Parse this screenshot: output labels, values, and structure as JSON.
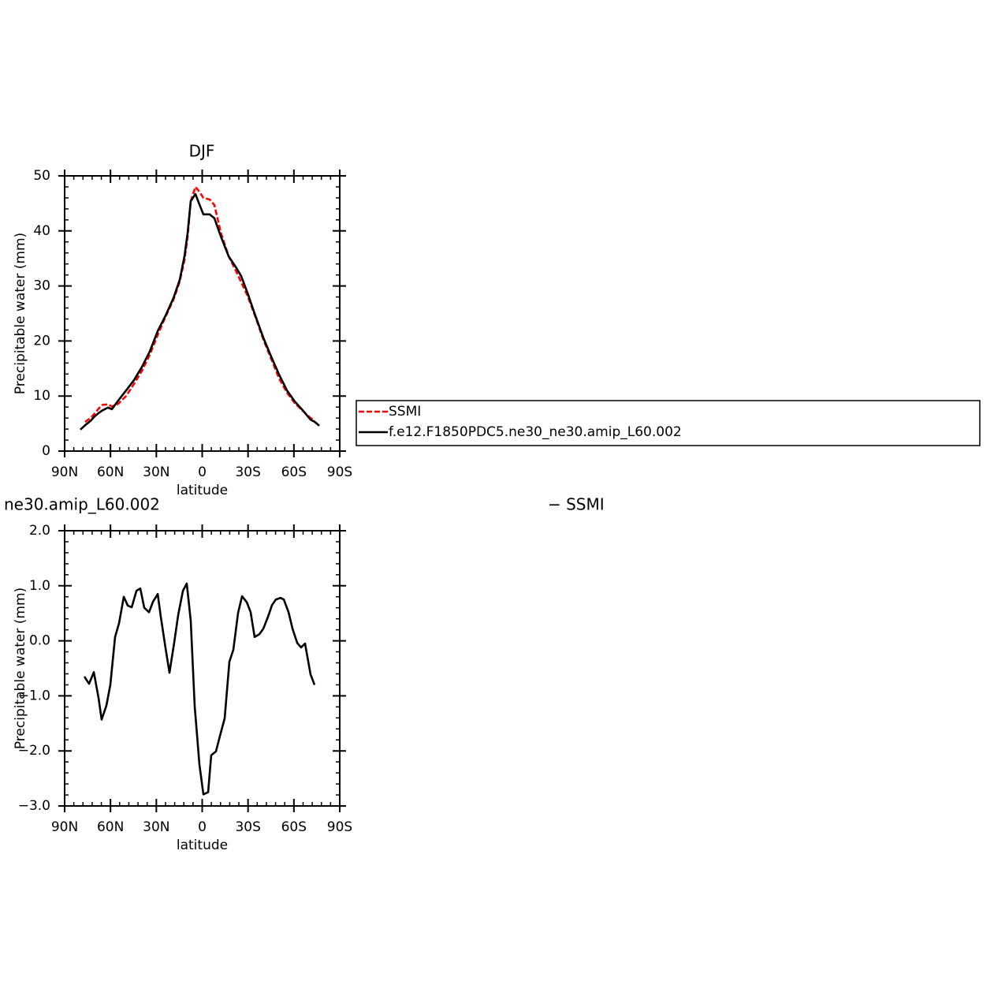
{
  "chart_data": [
    {
      "type": "line",
      "title": "DJF",
      "xlabel": "latitude",
      "ylabel": "Precipitable water (mm)",
      "xlim": [
        90,
        -90
      ],
      "xticks": [
        {
          "value": 90,
          "label": "90N"
        },
        {
          "value": 60,
          "label": "60N"
        },
        {
          "value": 30,
          "label": "30N"
        },
        0,
        {
          "value": -30,
          "label": "30S"
        },
        {
          "value": -60,
          "label": "60S"
        },
        {
          "value": -90,
          "label": "90S"
        }
      ],
      "ylim": [
        0,
        50
      ],
      "yticks": [
        0,
        10,
        20,
        30,
        40,
        50
      ],
      "legend": true,
      "x": [
        79.7,
        76.6,
        73.0,
        70.4,
        67.8,
        65.2,
        61.6,
        59.1,
        54.9,
        49.8,
        44.6,
        39.4,
        34.3,
        29.1,
        24.0,
        18.8,
        14.7,
        11.6,
        9.5,
        7.5,
        4.4,
        1.8,
        -0.8,
        -4.9,
        -8.0,
        -12.2,
        -17.3,
        -22.5,
        -25.5,
        -29.7,
        -34.8,
        -40.0,
        -45.1,
        -50.3,
        -55.5,
        -60.6,
        -65.8,
        -70.9,
        -73.7,
        -76.6
      ],
      "series": [
        {
          "name": "SSMI",
          "color": "#ff0000",
          "line_style": "dashed",
          "values": [
            null,
            5.3,
            6.0,
            6.8,
            7.7,
            8.4,
            8.5,
            8.1,
            8.6,
            10.0,
            12.2,
            14.6,
            17.5,
            21.1,
            24.4,
            27.5,
            30.8,
            34.7,
            39.0,
            45.4,
            48.0,
            47.1,
            46.0,
            45.7,
            44.7,
            39.7,
            35.4,
            32.5,
            30.7,
            28.2,
            24.4,
            20.3,
            16.8,
            13.2,
            10.6,
            8.7,
            7.3,
            6.0,
            5.6,
            null
          ]
        },
        {
          "name": "f.e12.F1850PDC5.ne30_ne30.amip_L60.002",
          "color": "#000000",
          "line_style": "solid",
          "values": [
            3.9,
            4.7,
            5.5,
            6.3,
            6.9,
            7.4,
            7.9,
            7.6,
            9.2,
            11.0,
            12.9,
            15.3,
            18.1,
            21.8,
            24.6,
            27.8,
            31.1,
            35.4,
            39.7,
            45.4,
            46.7,
            44.8,
            43.0,
            43.0,
            42.3,
            39.0,
            35.4,
            33.2,
            31.8,
            28.7,
            24.6,
            20.6,
            17.2,
            13.9,
            11.0,
            9.0,
            7.4,
            5.7,
            5.3,
            4.6
          ]
        }
      ]
    },
    {
      "type": "line",
      "title": "ne30.amip_L60.002",
      "annotations": [
        "− SSMI"
      ],
      "xlabel": "latitude",
      "ylabel": "Precipitable water (mm)",
      "xlim": [
        90,
        -90
      ],
      "xticks": [
        {
          "value": 90,
          "label": "90N"
        },
        {
          "value": 60,
          "label": "60N"
        },
        {
          "value": 30,
          "label": "30N"
        },
        0,
        {
          "value": -30,
          "label": "30S"
        },
        {
          "value": -60,
          "label": "60S"
        },
        {
          "value": -90,
          "label": "90S"
        }
      ],
      "ylim": [
        -3,
        2
      ],
      "yticks": [
        {
          "value": 2,
          "label": "2.0"
        },
        {
          "value": 1,
          "label": "1.0"
        },
        {
          "value": 0,
          "label": "0.0"
        },
        {
          "value": -1,
          "label": "−1.0"
        },
        {
          "value": -2,
          "label": "−2.0"
        },
        {
          "value": -3,
          "label": "−3.0"
        }
      ],
      "legend": false,
      "x": [
        77.1,
        74.0,
        70.9,
        67.8,
        65.8,
        62.7,
        60.1,
        57.0,
        54.4,
        51.3,
        48.7,
        46.1,
        43.0,
        40.5,
        37.9,
        34.8,
        32.2,
        29.1,
        27.1,
        24.0,
        21.4,
        18.3,
        15.7,
        12.6,
        10.1,
        7.5,
        4.9,
        1.8,
        -0.8,
        -3.9,
        -5.9,
        -9.0,
        -11.6,
        -14.7,
        -17.8,
        -20.4,
        -23.5,
        -26.1,
        -29.2,
        -31.7,
        -34.3,
        -37.4,
        -40.0,
        -43.1,
        -45.7,
        -48.2,
        -51.3,
        -53.4,
        -56.5,
        -59.1,
        -62.2,
        -64.7,
        -67.3,
        -70.9,
        -73.5
      ],
      "series": [
        {
          "color": "#000000",
          "line_style": "solid",
          "values": [
            -0.65,
            -0.78,
            -0.57,
            -1.04,
            -1.43,
            -1.18,
            -0.8,
            0.07,
            0.32,
            0.8,
            0.64,
            0.61,
            0.91,
            0.95,
            0.6,
            0.52,
            0.71,
            0.85,
            0.44,
            -0.13,
            -0.58,
            -0.03,
            0.47,
            0.91,
            1.04,
            0.37,
            -1.19,
            -2.25,
            -2.79,
            -2.75,
            -2.08,
            -2.01,
            -1.73,
            -1.41,
            -0.38,
            -0.16,
            0.51,
            0.81,
            0.7,
            0.52,
            0.07,
            0.12,
            0.22,
            0.44,
            0.65,
            0.75,
            0.78,
            0.75,
            0.52,
            0.22,
            -0.04,
            -0.12,
            -0.05,
            -0.61,
            -0.8
          ]
        }
      ]
    }
  ]
}
